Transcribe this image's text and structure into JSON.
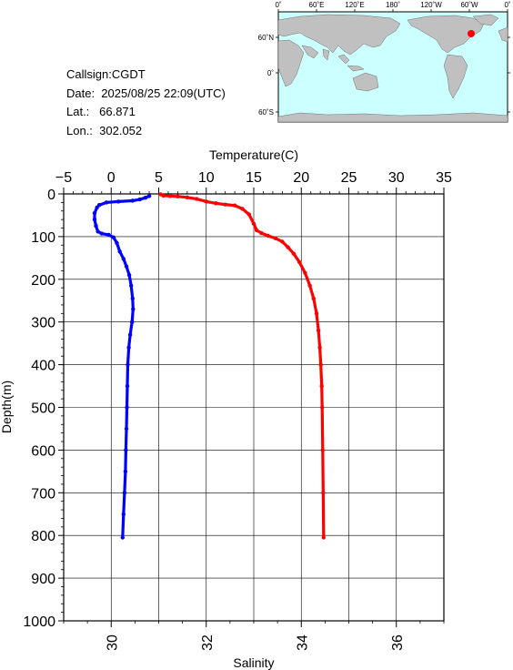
{
  "station": {
    "callsign_text": "Callsign:CGDT",
    "date_text": "Date:  2025/08/25 22:09(UTC)",
    "lat_text": "Lat.:   66.871",
    "lon_text": "Lon.:  302.052"
  },
  "map": {
    "lon_ticks": [
      "0˚",
      "60˚E",
      "120˚E",
      "180˚",
      "120˚W",
      "60˚W",
      "0˚"
    ],
    "lat_ticks": [
      "60˚N",
      "0˚",
      "60˚S"
    ],
    "ocean_color": "#ccffff",
    "land_color": "#c0c0c0",
    "marker_color": "#ff0000",
    "marker_lat": 66.871,
    "marker_lon": 302.052
  },
  "chart_data": {
    "type": "line",
    "depth_label": "Depth(m)",
    "temperature_label": "Temperature(C)",
    "salinity_label": "Salinity",
    "depth_range": [
      0,
      1000
    ],
    "depth_ticks": [
      0,
      100,
      200,
      300,
      400,
      500,
      600,
      700,
      800,
      900,
      1000
    ],
    "temperature_range": [
      -5,
      35
    ],
    "temperature_ticks": [
      -5,
      0,
      5,
      10,
      15,
      20,
      25,
      30,
      35
    ],
    "salinity_range": [
      29.0,
      37.0
    ],
    "salinity_ticks": [
      30,
      32,
      34,
      36
    ],
    "grid": true,
    "series": [
      {
        "name": "Temperature",
        "axis": "temperature",
        "color": "#ff0000",
        "points": [
          [
            5.2,
            1
          ],
          [
            5.5,
            4
          ],
          [
            6.2,
            5
          ],
          [
            7.0,
            6
          ],
          [
            8.0,
            8
          ],
          [
            9.0,
            12
          ],
          [
            10.0,
            18
          ],
          [
            11.0,
            22
          ],
          [
            12.0,
            25
          ],
          [
            13.0,
            27
          ],
          [
            13.8,
            35
          ],
          [
            14.5,
            48
          ],
          [
            15.0,
            70
          ],
          [
            15.3,
            85
          ],
          [
            15.8,
            92
          ],
          [
            16.5,
            98
          ],
          [
            17.3,
            104
          ],
          [
            18.0,
            112
          ],
          [
            18.6,
            125
          ],
          [
            19.2,
            140
          ],
          [
            19.8,
            160
          ],
          [
            20.4,
            185
          ],
          [
            20.9,
            215
          ],
          [
            21.3,
            245
          ],
          [
            21.6,
            280
          ],
          [
            21.8,
            320
          ],
          [
            21.95,
            360
          ],
          [
            22.05,
            400
          ],
          [
            22.15,
            450
          ],
          [
            22.2,
            500
          ],
          [
            22.25,
            600
          ],
          [
            22.3,
            700
          ],
          [
            22.35,
            805
          ]
        ]
      },
      {
        "name": "Salinity",
        "axis": "salinity",
        "color": "#0000ff",
        "points": [
          [
            30.8,
            5
          ],
          [
            30.72,
            9
          ],
          [
            30.6,
            13
          ],
          [
            30.45,
            16
          ],
          [
            30.15,
            18
          ],
          [
            29.9,
            20
          ],
          [
            29.75,
            26
          ],
          [
            29.7,
            32
          ],
          [
            29.65,
            45
          ],
          [
            29.65,
            60
          ],
          [
            29.68,
            75
          ],
          [
            29.72,
            88
          ],
          [
            29.8,
            93
          ],
          [
            29.95,
            96
          ],
          [
            30.05,
            102
          ],
          [
            30.12,
            115
          ],
          [
            30.18,
            135
          ],
          [
            30.26,
            152
          ],
          [
            30.32,
            170
          ],
          [
            30.38,
            190
          ],
          [
            30.42,
            215
          ],
          [
            30.45,
            245
          ],
          [
            30.46,
            270
          ],
          [
            30.44,
            300
          ],
          [
            30.4,
            330
          ],
          [
            30.37,
            360
          ],
          [
            30.35,
            400
          ],
          [
            30.34,
            450
          ],
          [
            30.33,
            500
          ],
          [
            30.32,
            550
          ],
          [
            30.31,
            600
          ],
          [
            30.3,
            650
          ],
          [
            30.28,
            700
          ],
          [
            30.26,
            750
          ],
          [
            30.24,
            805
          ]
        ]
      }
    ]
  }
}
